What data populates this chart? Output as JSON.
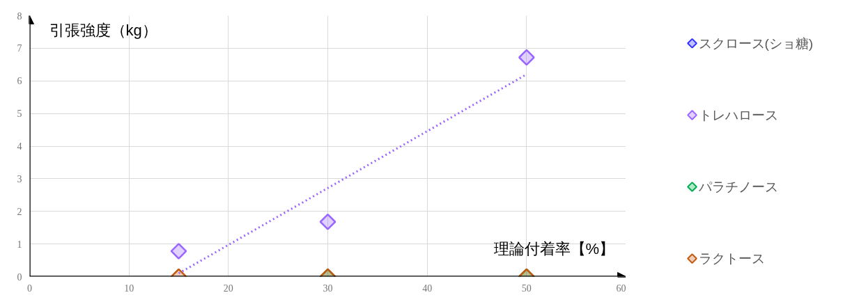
{
  "chart_data": {
    "type": "scatter",
    "xlabel": "理論付着率【%】",
    "ylabel": "引張強度（kg）",
    "x": [
      15,
      30,
      50
    ],
    "series": [
      {
        "name": "スクロース(ショ糖)",
        "color": "#3333ff",
        "values": [
          null,
          null,
          null
        ]
      },
      {
        "name": "トレハロース",
        "color": "#9966ff",
        "values": [
          0.78,
          1.68,
          6.72
        ]
      },
      {
        "name": "パラチノース",
        "color": "#00b050",
        "values": [
          null,
          0,
          0
        ]
      },
      {
        "name": "ラクトース",
        "color": "#c55a11",
        "values": [
          0,
          0,
          0
        ]
      },
      {
        "type": "line",
        "color": "#9966ff",
        "x": [
          15,
          50
        ],
        "values": [
          0.1,
          6.2
        ],
        "line_style": "dotted",
        "marker": "none"
      }
    ],
    "xlim": [
      0,
      60
    ],
    "ylim": [
      0,
      8
    ],
    "xticks": [
      0,
      10,
      20,
      30,
      40,
      50,
      60
    ],
    "yticks": [
      0,
      1,
      2,
      3,
      4,
      5,
      6,
      7,
      8
    ],
    "grid": true,
    "legend": "right",
    "marker": "diamond"
  }
}
